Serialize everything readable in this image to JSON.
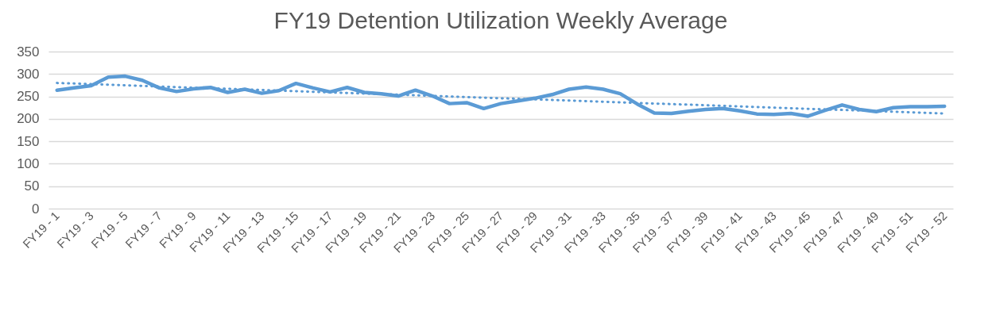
{
  "chart_data": {
    "type": "line",
    "title": "FY19 Detention Utilization Weekly Average",
    "categories": [
      "FY19 - 1",
      null,
      "FY19 - 3",
      null,
      "FY19 - 5",
      null,
      "FY19 - 7",
      null,
      "FY19 - 9",
      null,
      "FY19 - 11",
      null,
      "FY19 - 13",
      null,
      "FY19 - 15",
      null,
      "FY19 - 17",
      null,
      "FY19 - 19",
      null,
      "FY19 - 21",
      null,
      "FY19 - 23",
      null,
      "FY19 - 25",
      null,
      "FY19 - 27",
      null,
      "FY19 - 29",
      null,
      "FY19 - 31",
      null,
      "FY19 - 33",
      null,
      "FY19 - 35",
      null,
      "FY19 - 37",
      null,
      "FY19 - 39",
      null,
      "FY19 - 41",
      null,
      "FY19 - 43",
      null,
      "FY19 - 45",
      null,
      "FY19 - 47",
      null,
      "FY19 - 49",
      null,
      "FY19 - 51",
      null,
      "FY19 - 52"
    ],
    "series": [
      {
        "color": "#5b9bd5",
        "line_style": "solid",
        "values": [
          264,
          269,
          274,
          293,
          295,
          286,
          269,
          261,
          267,
          270,
          259,
          266,
          257,
          263,
          279,
          269,
          260,
          270,
          259,
          256,
          251,
          264,
          251,
          234,
          236,
          223,
          234,
          240,
          246,
          254,
          266,
          271,
          266,
          256,
          233,
          213,
          212,
          217,
          221,
          223,
          218,
          211,
          210,
          212,
          206,
          219,
          231,
          221,
          216,
          225,
          227,
          227,
          228
        ]
      },
      {
        "type": "line",
        "color": "#5b9bd5",
        "line_style": "dotted",
        "x": [
          "FY19 - 1",
          "FY19 - 52"
        ],
        "values": [
          280,
          212
        ]
      }
    ],
    "ylim": [
      0,
      350
    ],
    "yticks": [
      0,
      50,
      100,
      150,
      200,
      250,
      300,
      350
    ],
    "grid": "y",
    "marker": "none"
  }
}
